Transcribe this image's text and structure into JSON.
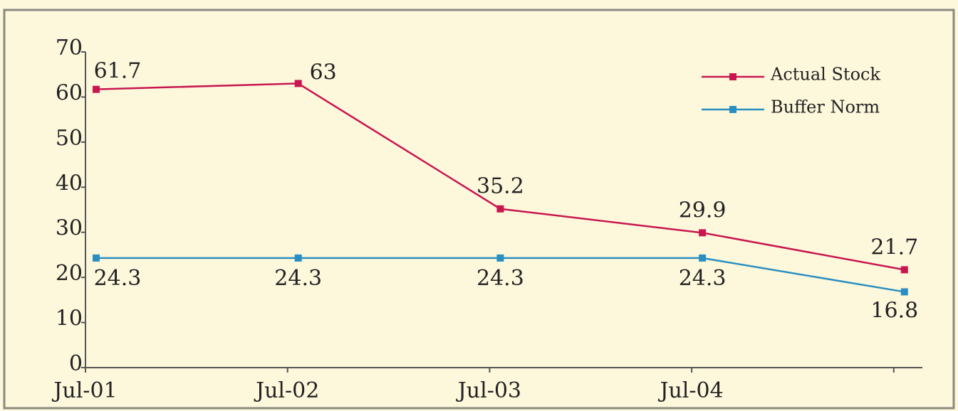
{
  "chart_data": {
    "type": "line",
    "categories": [
      "Jul-01",
      "Jul-02",
      "Jul-03",
      "Jul-04",
      null
    ],
    "series": [
      {
        "name": "Actual Stock",
        "color": "#c8174f",
        "values": [
          61.7,
          63,
          35.2,
          29.9,
          21.7
        ]
      },
      {
        "name": "Buffer Norm",
        "color": "#2a8fc0",
        "values": [
          24.3,
          24.3,
          24.3,
          24.3,
          16.8
        ]
      }
    ],
    "ylim": [
      0,
      70
    ],
    "yticks": [
      0,
      10,
      20,
      30,
      40,
      50,
      60,
      70
    ],
    "grid": false,
    "legend": "upper right"
  }
}
